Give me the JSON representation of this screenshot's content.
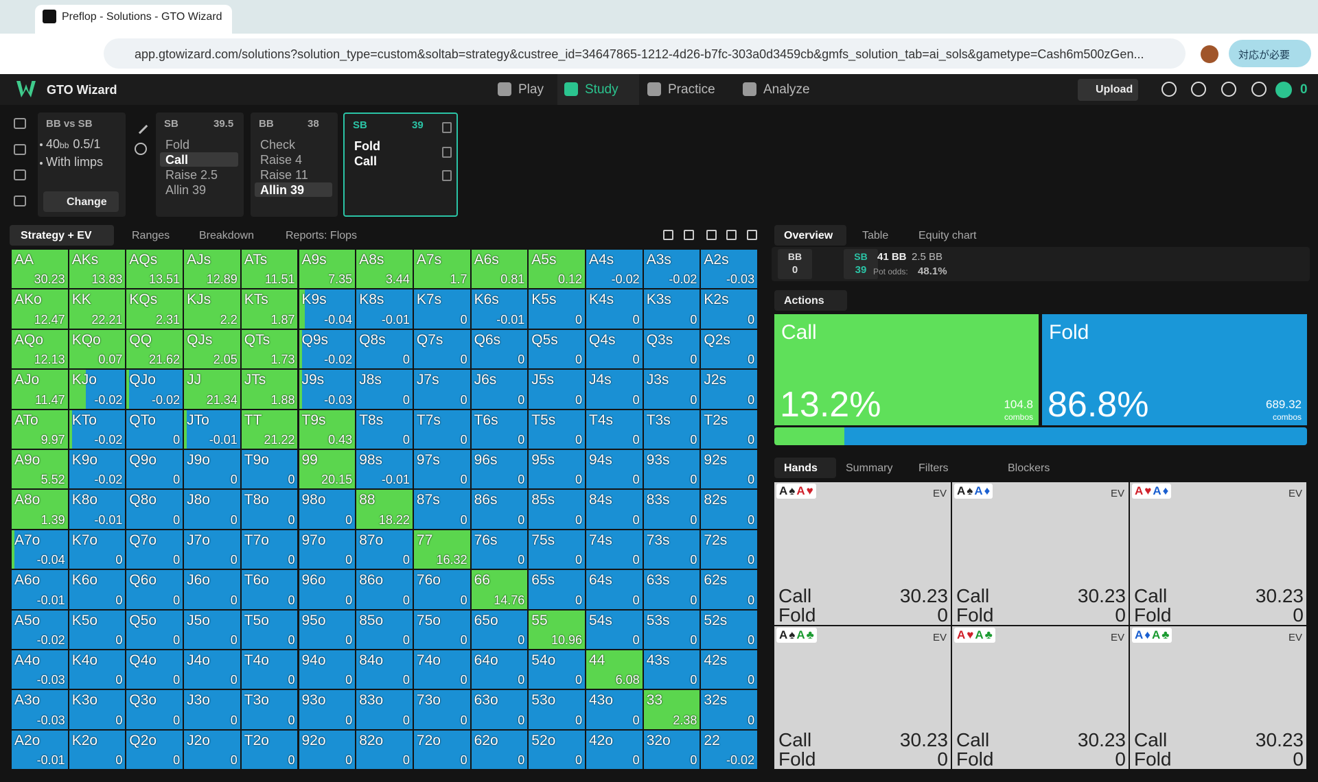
{
  "browser": {
    "tab_title": "Preflop - Solutions - GTO Wizard",
    "url": "app.gtowizard.com/solutions?solution_type=custom&soltab=strategy&custree_id=34647865-1212-4d26-b7fc-303a0d3459cb&gmfs_solution_tab=ai_sols&gametype=Cash6m500zGen...",
    "profile_button": "対応が必要"
  },
  "nav": {
    "brand": "GTO Wizard",
    "items": [
      "Play",
      "Study",
      "Practice",
      "Analyze"
    ],
    "active": 1,
    "upload": "Upload",
    "coins": "0"
  },
  "spot": {
    "title": "BB vs SB",
    "stack": "40",
    "stack_unit": "bb",
    "blinds": "0.5/1",
    "limps": "With limps",
    "change": "Change"
  },
  "nodes": [
    {
      "player": "SB",
      "stack": "39.5",
      "actions": [
        "Fold",
        "Call",
        "Raise 2.5",
        "Allin 39"
      ],
      "selected": 1
    },
    {
      "player": "BB",
      "stack": "38",
      "actions": [
        "Check",
        "Raise 4",
        "Raise 11",
        "Allin 39"
      ],
      "selected": 3
    },
    {
      "player": "SB",
      "stack": "39",
      "actions": [
        "Fold",
        "Call"
      ],
      "current": true
    }
  ],
  "strategy_tabs": [
    "Strategy + EV",
    "Ranges",
    "Breakdown",
    "Reports: Flops"
  ],
  "grid": {
    "colors": {
      "call": "#5bd64e",
      "fold": "#1a90d4"
    },
    "hands": [
      [
        "AA",
        "AKs",
        "AQs",
        "AJs",
        "ATs",
        "A9s",
        "A8s",
        "A7s",
        "A6s",
        "A5s",
        "A4s",
        "A3s",
        "A2s"
      ],
      [
        "AKo",
        "KK",
        "KQs",
        "KJs",
        "KTs",
        "K9s",
        "K8s",
        "K7s",
        "K6s",
        "K5s",
        "K4s",
        "K3s",
        "K2s"
      ],
      [
        "AQo",
        "KQo",
        "QQ",
        "QJs",
        "QTs",
        "Q9s",
        "Q8s",
        "Q7s",
        "Q6s",
        "Q5s",
        "Q4s",
        "Q3s",
        "Q2s"
      ],
      [
        "AJo",
        "KJo",
        "QJo",
        "JJ",
        "JTs",
        "J9s",
        "J8s",
        "J7s",
        "J6s",
        "J5s",
        "J4s",
        "J3s",
        "J2s"
      ],
      [
        "ATo",
        "KTo",
        "QTo",
        "JTo",
        "TT",
        "T9s",
        "T8s",
        "T7s",
        "T6s",
        "T5s",
        "T4s",
        "T3s",
        "T2s"
      ],
      [
        "A9o",
        "K9o",
        "Q9o",
        "J9o",
        "T9o",
        "99",
        "98s",
        "97s",
        "96s",
        "95s",
        "94s",
        "93s",
        "92s"
      ],
      [
        "A8o",
        "K8o",
        "Q8o",
        "J8o",
        "T8o",
        "98o",
        "88",
        "87s",
        "86s",
        "85s",
        "84s",
        "83s",
        "82s"
      ],
      [
        "A7o",
        "K7o",
        "Q7o",
        "J7o",
        "T7o",
        "97o",
        "87o",
        "77",
        "76s",
        "75s",
        "74s",
        "73s",
        "72s"
      ],
      [
        "A6o",
        "K6o",
        "Q6o",
        "J6o",
        "T6o",
        "96o",
        "86o",
        "76o",
        "66",
        "65s",
        "64s",
        "63s",
        "62s"
      ],
      [
        "A5o",
        "K5o",
        "Q5o",
        "J5o",
        "T5o",
        "95o",
        "85o",
        "75o",
        "65o",
        "55",
        "54s",
        "53s",
        "52s"
      ],
      [
        "A4o",
        "K4o",
        "Q4o",
        "J4o",
        "T4o",
        "94o",
        "84o",
        "74o",
        "64o",
        "54o",
        "44",
        "43s",
        "42s"
      ],
      [
        "A3o",
        "K3o",
        "Q3o",
        "J3o",
        "T3o",
        "93o",
        "83o",
        "73o",
        "63o",
        "53o",
        "43o",
        "33",
        "32s"
      ],
      [
        "A2o",
        "K2o",
        "Q2o",
        "J2o",
        "T2o",
        "92o",
        "82o",
        "72o",
        "62o",
        "52o",
        "42o",
        "32o",
        "22"
      ]
    ],
    "ev": [
      [
        30.23,
        13.83,
        13.51,
        12.89,
        11.51,
        7.35,
        3.44,
        1.7,
        0.81,
        0.12,
        -0.02,
        -0.02,
        -0.03
      ],
      [
        12.47,
        22.21,
        2.31,
        2.2,
        1.87,
        -0.04,
        -0.01,
        0,
        -0.01,
        0,
        0,
        0,
        0
      ],
      [
        12.13,
        0.07,
        21.62,
        2.05,
        1.73,
        -0.02,
        0,
        0,
        0,
        0,
        0,
        0,
        0
      ],
      [
        11.47,
        -0.02,
        -0.02,
        21.34,
        1.88,
        -0.03,
        0,
        0,
        0,
        0,
        0,
        0,
        0
      ],
      [
        9.97,
        -0.02,
        0,
        -0.01,
        21.22,
        0.43,
        0,
        0,
        0,
        0,
        0,
        0,
        0
      ],
      [
        5.52,
        -0.02,
        0,
        0,
        0,
        20.15,
        -0.01,
        0,
        0,
        0,
        0,
        0,
        0
      ],
      [
        1.39,
        -0.01,
        0,
        0,
        0,
        0,
        18.22,
        0,
        0,
        0,
        0,
        0,
        0
      ],
      [
        -0.04,
        0,
        0,
        0,
        0,
        0,
        0,
        16.32,
        0,
        0,
        0,
        0,
        0
      ],
      [
        -0.01,
        0,
        0,
        0,
        0,
        0,
        0,
        0,
        14.76,
        0,
        0,
        0,
        0
      ],
      [
        -0.02,
        0,
        0,
        0,
        0,
        0,
        0,
        0,
        0,
        10.96,
        0,
        0,
        0
      ],
      [
        -0.03,
        0,
        0,
        0,
        0,
        0,
        0,
        0,
        0,
        0,
        6.08,
        0,
        0
      ],
      [
        -0.03,
        0,
        0,
        0,
        0,
        0,
        0,
        0,
        0,
        0,
        0,
        2.38,
        0
      ],
      [
        -0.01,
        0,
        0,
        0,
        0,
        0,
        0,
        0,
        0,
        0,
        0,
        0,
        -0.02
      ]
    ],
    "call": [
      [
        1,
        1,
        1,
        1,
        1,
        1,
        1,
        1,
        1,
        1,
        0,
        0,
        0
      ],
      [
        1,
        1,
        1,
        1,
        1,
        0.1,
        0,
        0,
        0,
        0,
        0,
        0,
        0
      ],
      [
        1,
        1,
        1,
        1,
        1,
        0.05,
        0,
        0,
        0,
        0,
        0,
        0,
        0
      ],
      [
        1,
        0.3,
        0.05,
        1,
        1,
        0.05,
        0,
        0,
        0,
        0,
        0,
        0,
        0
      ],
      [
        1,
        0.05,
        0,
        0.05,
        1,
        1,
        0,
        0,
        0,
        0,
        0,
        0,
        0
      ],
      [
        1,
        0,
        0,
        0,
        0,
        1,
        0,
        0,
        0,
        0,
        0,
        0,
        0
      ],
      [
        1,
        0,
        0,
        0,
        0,
        0,
        1,
        0,
        0,
        0,
        0,
        0,
        0
      ],
      [
        0.05,
        0,
        0,
        0,
        0,
        0,
        0,
        1,
        0,
        0,
        0,
        0,
        0
      ],
      [
        0,
        0,
        0,
        0,
        0,
        0,
        0,
        0,
        1,
        0,
        0,
        0,
        0
      ],
      [
        0,
        0,
        0,
        0,
        0,
        0,
        0,
        0,
        0,
        1,
        0,
        0,
        0
      ],
      [
        0,
        0,
        0,
        0,
        0,
        0,
        0,
        0,
        0,
        0,
        1,
        0,
        0
      ],
      [
        0,
        0,
        0,
        0,
        0,
        0,
        0,
        0,
        0,
        0,
        0,
        1,
        0
      ],
      [
        0,
        0,
        0,
        0,
        0,
        0,
        0,
        0,
        0,
        0,
        0,
        0,
        0
      ]
    ]
  },
  "overview": {
    "tabs": [
      "Overview",
      "Table",
      "Equity chart"
    ],
    "stacks": [
      {
        "player": "BB",
        "stack": "0"
      },
      {
        "player": "SB",
        "stack": "39"
      }
    ],
    "pot": "41 BB",
    "bet": "2.5 BB",
    "pot_odds_label": "Pot odds:",
    "pot_odds": "48.1%"
  },
  "actions": {
    "label": "Actions",
    "combos_label": "combos",
    "items": [
      {
        "name": "Call",
        "color": "#5fe05a",
        "pct": {
          "value": 13.2,
          "label": "13.2%"
        },
        "combos": "104.8"
      },
      {
        "name": "Fold",
        "color": "#1a97d8",
        "pct": {
          "value": 86.8,
          "label": "86.8%"
        },
        "combos": "689.32"
      }
    ]
  },
  "hands_panel": {
    "tabs": [
      "Hands",
      "Summary",
      "Filters",
      "Blockers"
    ],
    "ev_label": "EV",
    "cards": [
      {
        "cards": [
          {
            "r": "A",
            "s": "♠",
            "color": "#222"
          },
          {
            "r": "A",
            "s": "♥",
            "color": "#d0202a"
          }
        ],
        "rows": [
          {
            "action": "Call",
            "ev": 30.23
          },
          {
            "action": "Fold",
            "ev": 0
          }
        ]
      },
      {
        "cards": [
          {
            "r": "A",
            "s": "♠",
            "color": "#222"
          },
          {
            "r": "A",
            "s": "♦",
            "color": "#1a5fd0"
          }
        ],
        "rows": [
          {
            "action": "Call",
            "ev": 30.23
          },
          {
            "action": "Fold",
            "ev": 0
          }
        ]
      },
      {
        "cards": [
          {
            "r": "A",
            "s": "♥",
            "color": "#d0202a"
          },
          {
            "r": "A",
            "s": "♦",
            "color": "#1a5fd0"
          }
        ],
        "rows": [
          {
            "action": "Call",
            "ev": 30.23
          },
          {
            "action": "Fold",
            "ev": 0
          }
        ]
      },
      {
        "cards": [
          {
            "r": "A",
            "s": "♠",
            "color": "#222"
          },
          {
            "r": "A",
            "s": "♣",
            "color": "#1a9a30"
          }
        ],
        "rows": [
          {
            "action": "Call",
            "ev": 30.23
          },
          {
            "action": "Fold",
            "ev": 0
          }
        ]
      },
      {
        "cards": [
          {
            "r": "A",
            "s": "♥",
            "color": "#d0202a"
          },
          {
            "r": "A",
            "s": "♣",
            "color": "#1a9a30"
          }
        ],
        "rows": [
          {
            "action": "Call",
            "ev": 30.23
          },
          {
            "action": "Fold",
            "ev": 0
          }
        ]
      },
      {
        "cards": [
          {
            "r": "A",
            "s": "♦",
            "color": "#1a5fd0"
          },
          {
            "r": "A",
            "s": "♣",
            "color": "#1a9a30"
          }
        ],
        "rows": [
          {
            "action": "Call",
            "ev": 30.23
          },
          {
            "action": "Fold",
            "ev": 0
          }
        ]
      }
    ]
  }
}
